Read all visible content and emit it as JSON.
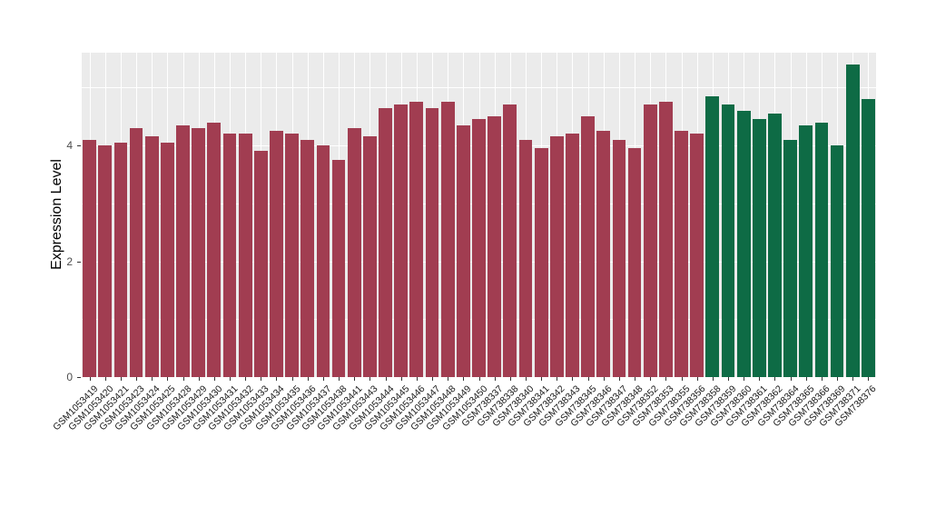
{
  "chart_data": {
    "type": "bar",
    "title": "",
    "xlabel": "",
    "ylabel": "Expression Level",
    "ylim": [
      0,
      5.6
    ],
    "yticks": [
      0,
      2,
      4
    ],
    "grid": true,
    "legend": "none",
    "panel_background": "#EBEBEB",
    "gridline_color": "#FFFFFF",
    "categories": [
      "GSM1053419",
      "GSM1053420",
      "GSM1053421",
      "GSM1053423",
      "GSM1053424",
      "GSM1053425",
      "GSM1053428",
      "GSM1053429",
      "GSM1053430",
      "GSM1053431",
      "GSM1053432",
      "GSM1053433",
      "GSM1053434",
      "GSM1053435",
      "GSM1053436",
      "GSM1053437",
      "GSM1053438",
      "GSM1053441",
      "GSM1053443",
      "GSM1053444",
      "GSM1053445",
      "GSM1053446",
      "GSM1053447",
      "GSM1053448",
      "GSM1053449",
      "GSM1053450",
      "GSM738337",
      "GSM738338",
      "GSM738340",
      "GSM738341",
      "GSM738342",
      "GSM738343",
      "GSM738345",
      "GSM738346",
      "GSM738347",
      "GSM738348",
      "GSM738352",
      "GSM738353",
      "GSM738355",
      "GSM738356",
      "GSM738358",
      "GSM738359",
      "GSM738360",
      "GSM738361",
      "GSM738362",
      "GSM738364",
      "GSM738365",
      "GSM738366",
      "GSM738369",
      "GSM738371",
      "GSM738376"
    ],
    "values": [
      4.1,
      4.0,
      4.05,
      4.3,
      4.15,
      4.05,
      4.35,
      4.3,
      4.4,
      4.2,
      4.2,
      3.9,
      4.25,
      4.2,
      4.1,
      4.0,
      3.75,
      4.3,
      4.15,
      4.65,
      4.7,
      4.75,
      4.65,
      4.75,
      4.35,
      4.45,
      4.5,
      4.7,
      4.1,
      3.95,
      4.15,
      4.2,
      4.5,
      4.25,
      4.1,
      3.95,
      4.7,
      4.75,
      4.25,
      4.2,
      4.85,
      4.7,
      4.6,
      4.45,
      4.55,
      4.1,
      4.35,
      4.4,
      4.0,
      5.4,
      4.8
    ],
    "groups": [
      "maroon",
      "maroon",
      "maroon",
      "maroon",
      "maroon",
      "maroon",
      "maroon",
      "maroon",
      "maroon",
      "maroon",
      "maroon",
      "maroon",
      "maroon",
      "maroon",
      "maroon",
      "maroon",
      "maroon",
      "maroon",
      "maroon",
      "maroon",
      "maroon",
      "maroon",
      "maroon",
      "maroon",
      "maroon",
      "maroon",
      "maroon",
      "maroon",
      "maroon",
      "maroon",
      "maroon",
      "maroon",
      "maroon",
      "maroon",
      "maroon",
      "maroon",
      "maroon",
      "maroon",
      "maroon",
      "maroon",
      "green",
      "green",
      "green",
      "green",
      "green",
      "green",
      "green",
      "green",
      "green",
      "green",
      "green"
    ],
    "group_colors": {
      "maroon": "#A13D51",
      "green": "#0E6B45"
    }
  }
}
